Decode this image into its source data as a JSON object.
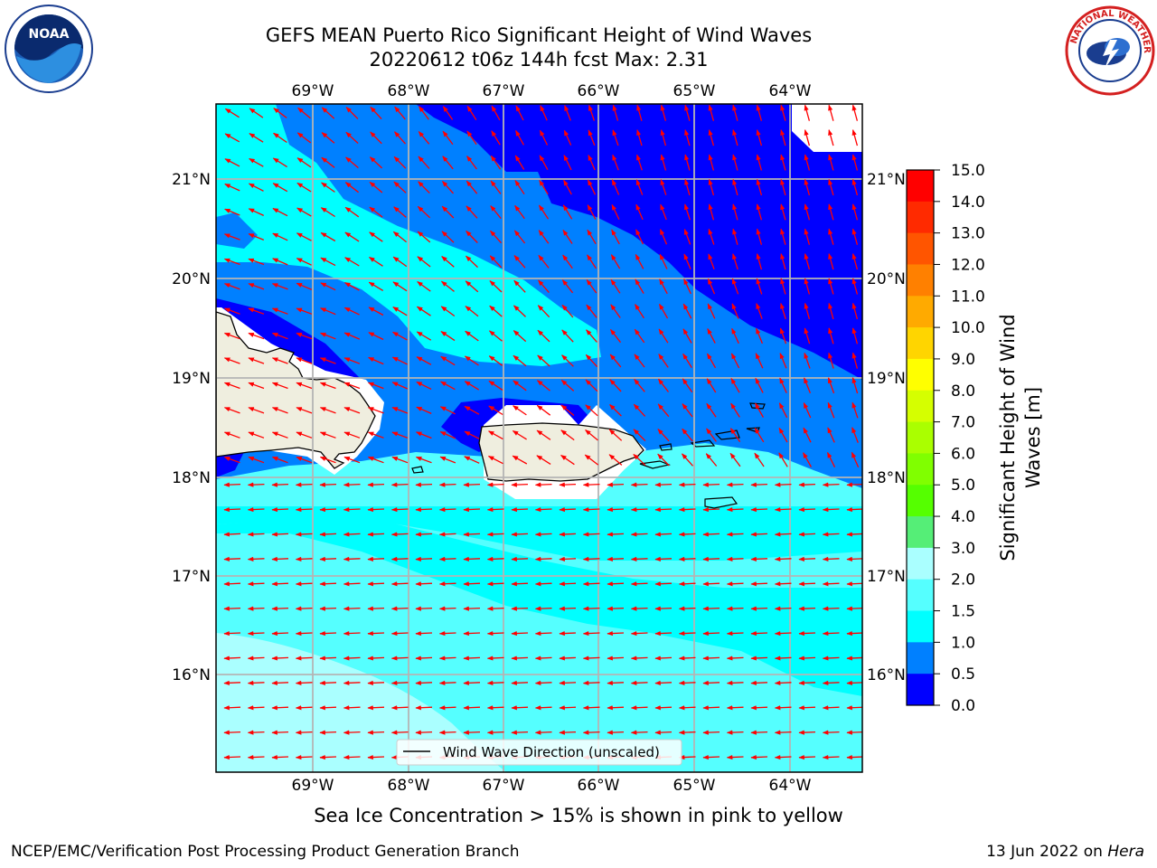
{
  "header": {
    "title_line1": "GEFS MEAN Puerto Rico Significant Height of Wind Waves",
    "title_line2": "20220612 t06z 144h fcst   Max: 2.31"
  },
  "map": {
    "lon_labels": [
      "69°W",
      "68°W",
      "67°W",
      "66°W",
      "65°W",
      "64°W"
    ],
    "lat_labels": [
      "21°N",
      "20°N",
      "19°N",
      "18°N",
      "17°N",
      "16°N"
    ],
    "legend_label": "Wind Wave Direction (unscaled)",
    "arrow_color": "#ff0000",
    "land_color": "#efeedf"
  },
  "colorbar": {
    "label_line1": "Significant Height of Wind",
    "label_line2": "Waves [m]",
    "ticks": [
      "15.0",
      "14.0",
      "13.0",
      "12.0",
      "11.0",
      "10.0",
      "9.0",
      "8.0",
      "7.0",
      "6.0",
      "5.0",
      "4.0",
      "3.0",
      "2.0",
      "1.5",
      "1.0",
      "0.5",
      "0.0"
    ],
    "colors_top_to_bottom": [
      "#ff0000",
      "#ff2a00",
      "#ff5500",
      "#ff8000",
      "#ffaa00",
      "#ffd500",
      "#ffff00",
      "#d5ff00",
      "#aaff00",
      "#80ff00",
      "#55ff00",
      "#00e000",
      "#55ee77",
      "#aaffff",
      "#55ffff",
      "#00ffff",
      "#0080ff",
      "#0000ff"
    ]
  },
  "footer": {
    "note": "Sea Ice Concentration > 15% is shown in pink to yellow",
    "left": "NCEP/EMC/Verification Post Processing Product Generation Branch",
    "right_date": "13 Jun 2022 on ",
    "right_host": "Hera"
  },
  "logos": {
    "noaa_text": "NOAA",
    "nws_text": "NATIONAL WEATHER SERVICE"
  }
}
